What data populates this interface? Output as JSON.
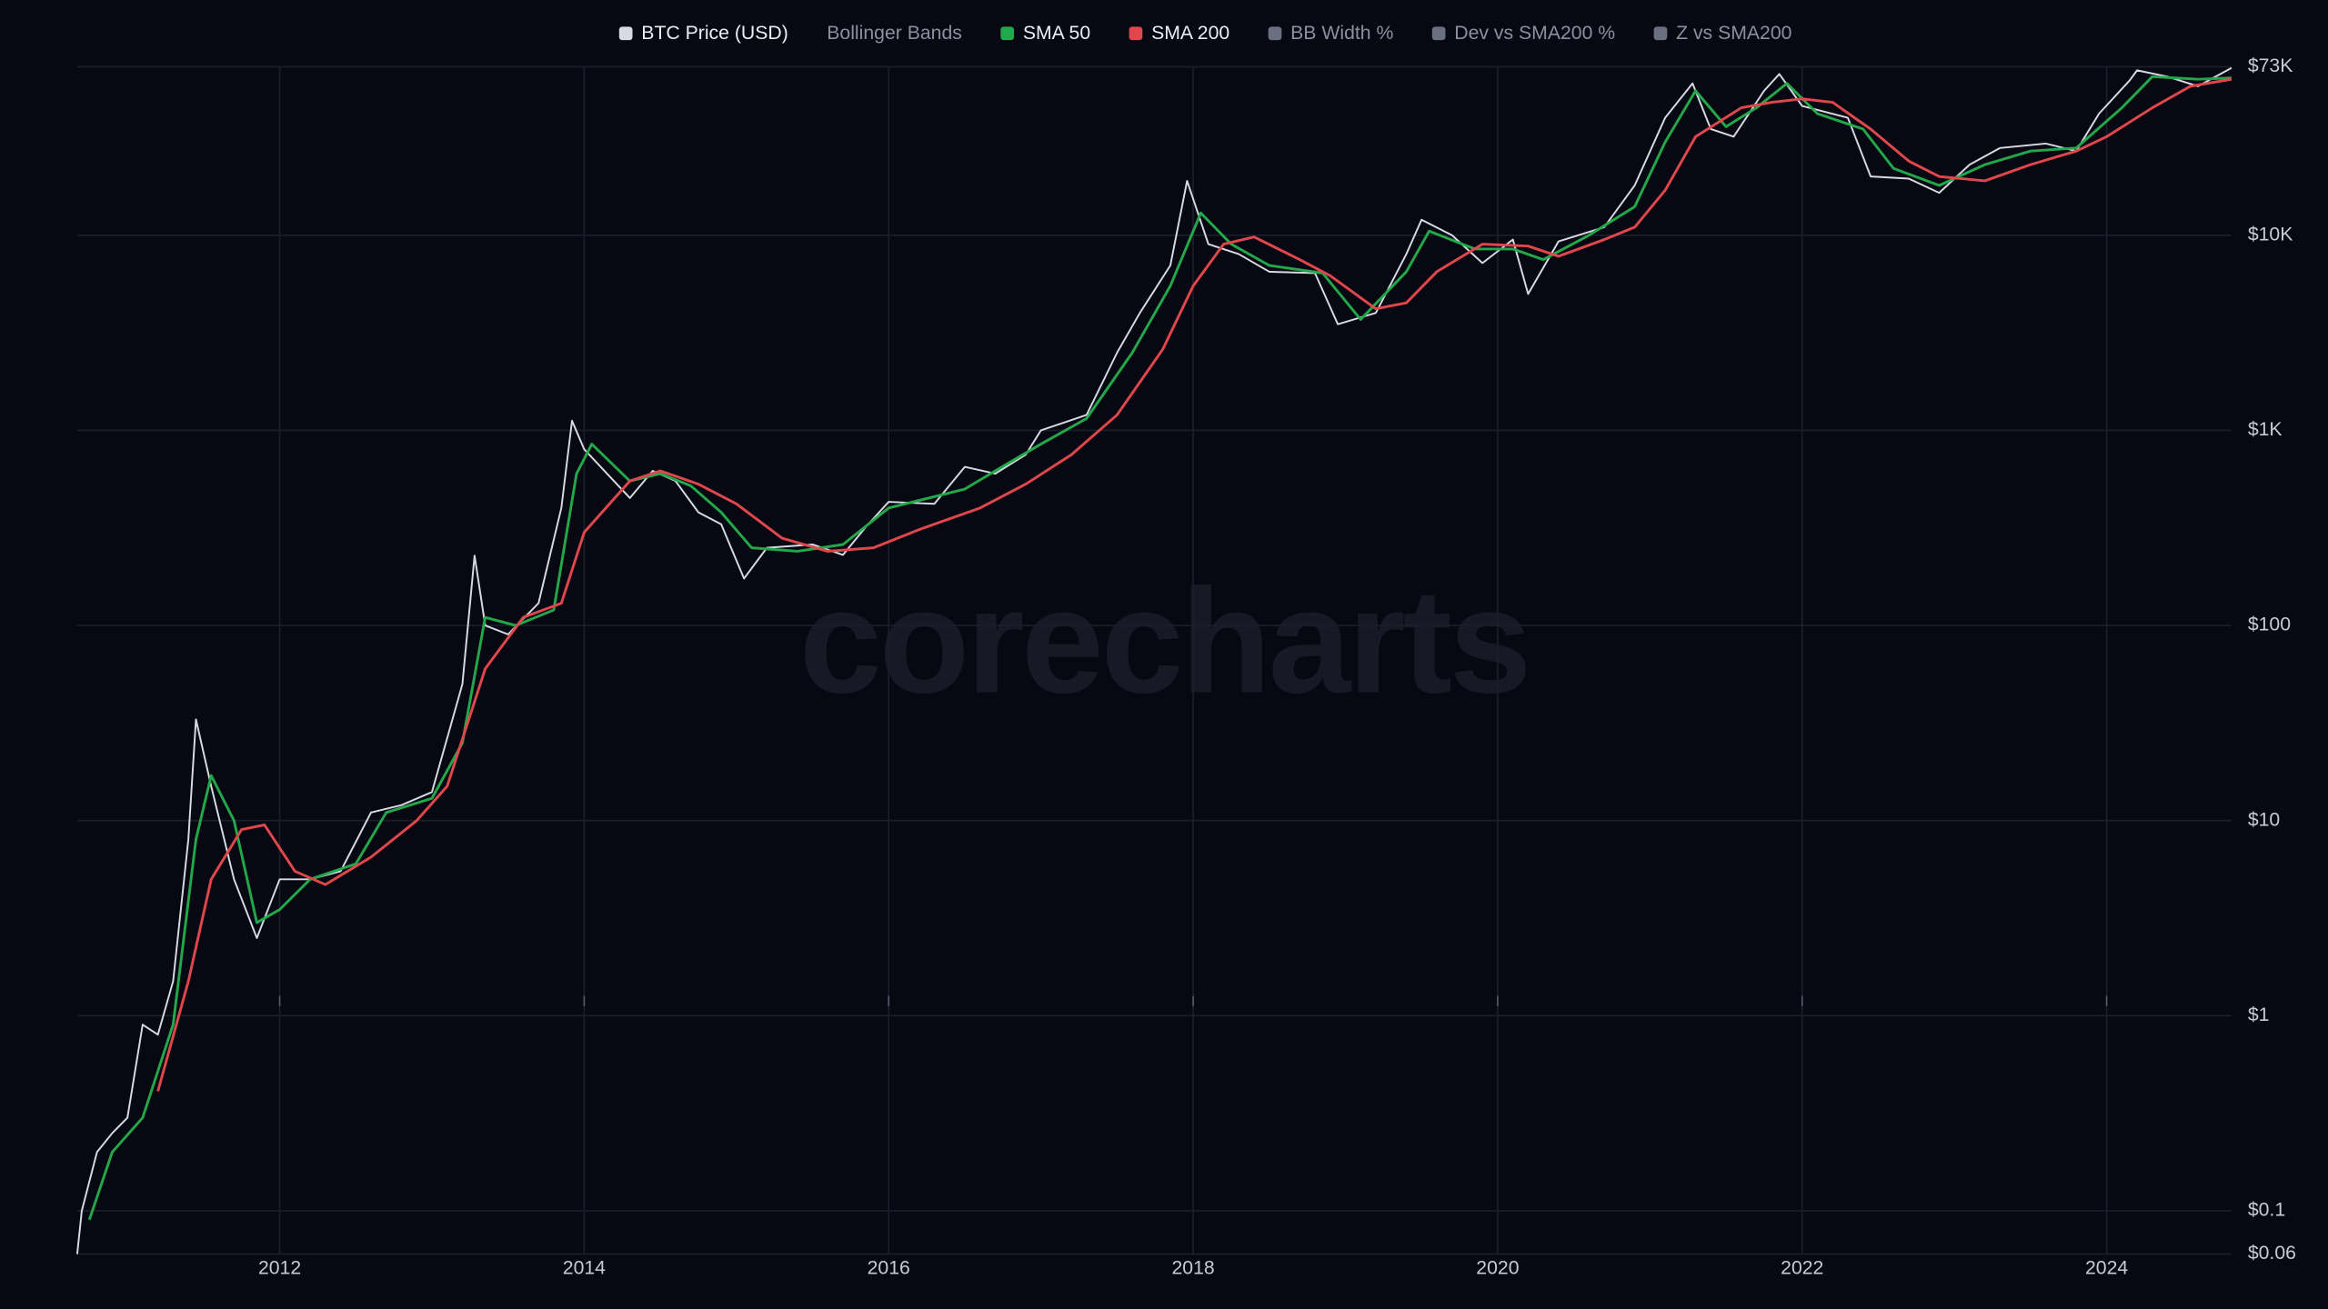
{
  "chart_data": {
    "type": "line",
    "log_y": true,
    "grid": true,
    "legend_position": "top",
    "watermark": "corecharts",
    "xlim": [
      2010.67,
      2024.82
    ],
    "xticks": [
      2012,
      2014,
      2016,
      2018,
      2020,
      2022,
      2024
    ],
    "ylim": [
      0.06,
      73000
    ],
    "yticks": [
      {
        "value": 0.06,
        "label": "$0.06"
      },
      {
        "value": 0.1,
        "label": "$0.1"
      },
      {
        "value": 1,
        "label": "$1"
      },
      {
        "value": 10,
        "label": "$10"
      },
      {
        "value": 100,
        "label": "$100"
      },
      {
        "value": 1000,
        "label": "$1K"
      },
      {
        "value": 10000,
        "label": "$10K"
      },
      {
        "value": 73000,
        "label": "$73K"
      }
    ],
    "series": [
      {
        "name": "BTC Price (USD)",
        "color": "#d9d9e3",
        "visible": true,
        "x": [
          2010.67,
          2010.7,
          2010.8,
          2010.9,
          2011.0,
          2011.1,
          2011.2,
          2011.3,
          2011.4,
          2011.45,
          2011.55,
          2011.7,
          2011.85,
          2012.0,
          2012.2,
          2012.4,
          2012.6,
          2012.8,
          2013.0,
          2013.2,
          2013.28,
          2013.35,
          2013.5,
          2013.7,
          2013.85,
          2013.92,
          2014.0,
          2014.15,
          2014.3,
          2014.45,
          2014.6,
          2014.75,
          2014.9,
          2015.05,
          2015.2,
          2015.5,
          2015.7,
          2015.85,
          2016.0,
          2016.3,
          2016.5,
          2016.7,
          2016.9,
          2017.0,
          2017.3,
          2017.5,
          2017.65,
          2017.85,
          2017.96,
          2018.1,
          2018.3,
          2018.5,
          2018.8,
          2018.95,
          2019.2,
          2019.4,
          2019.5,
          2019.7,
          2019.9,
          2020.1,
          2020.2,
          2020.4,
          2020.7,
          2020.9,
          2021.1,
          2021.28,
          2021.4,
          2021.55,
          2021.75,
          2021.85,
          2022.0,
          2022.3,
          2022.45,
          2022.7,
          2022.9,
          2023.1,
          2023.3,
          2023.6,
          2023.8,
          2023.95,
          2024.15,
          2024.2,
          2024.4,
          2024.6,
          2024.82
        ],
        "values": [
          0.06,
          0.1,
          0.2,
          0.25,
          0.3,
          0.9,
          0.8,
          1.5,
          8,
          33,
          15,
          5,
          2.5,
          5,
          5,
          5.5,
          11,
          12,
          14,
          50,
          228,
          100,
          90,
          130,
          400,
          1120,
          800,
          600,
          450,
          620,
          550,
          380,
          330,
          174,
          250,
          260,
          230,
          320,
          430,
          420,
          650,
          600,
          750,
          1000,
          1200,
          2500,
          4000,
          7000,
          19000,
          9000,
          8000,
          6500,
          6400,
          3500,
          4000,
          8000,
          12000,
          10000,
          7200,
          9500,
          5000,
          9300,
          11000,
          18000,
          40000,
          60000,
          35000,
          32000,
          55000,
          67000,
          46000,
          40000,
          20000,
          19500,
          16500,
          23000,
          28000,
          29500,
          27000,
          42000,
          62000,
          70000,
          65000,
          58000,
          72000
        ]
      },
      {
        "name": "Bollinger Bands",
        "visible": false
      },
      {
        "name": "SMA 50",
        "color": "#22a84a",
        "visible": true,
        "x": [
          2010.75,
          2010.9,
          2011.1,
          2011.3,
          2011.45,
          2011.55,
          2011.7,
          2011.85,
          2012.0,
          2012.2,
          2012.5,
          2012.7,
          2013.0,
          2013.2,
          2013.35,
          2013.55,
          2013.8,
          2013.95,
          2014.05,
          2014.3,
          2014.5,
          2014.7,
          2014.9,
          2015.1,
          2015.4,
          2015.7,
          2016.0,
          2016.5,
          2016.7,
          2017.0,
          2017.3,
          2017.6,
          2017.85,
          2018.05,
          2018.25,
          2018.5,
          2018.85,
          2019.1,
          2019.4,
          2019.55,
          2019.85,
          2020.1,
          2020.3,
          2020.6,
          2020.9,
          2021.1,
          2021.3,
          2021.5,
          2021.7,
          2021.9,
          2022.1,
          2022.4,
          2022.6,
          2022.9,
          2023.2,
          2023.5,
          2023.8,
          2024.1,
          2024.3,
          2024.6,
          2024.82
        ],
        "values": [
          0.09,
          0.2,
          0.3,
          0.9,
          8,
          17,
          10,
          3,
          3.5,
          5,
          6,
          11,
          13,
          25,
          110,
          100,
          120,
          600,
          850,
          550,
          600,
          520,
          380,
          250,
          240,
          260,
          400,
          500,
          620,
          850,
          1150,
          2500,
          5500,
          13000,
          9000,
          7000,
          6400,
          3700,
          6500,
          10500,
          8500,
          8500,
          7500,
          10000,
          14000,
          30000,
          55000,
          36000,
          45000,
          60000,
          42000,
          35000,
          22000,
          18000,
          23000,
          27000,
          28000,
          45000,
          65000,
          63000,
          64000
        ]
      },
      {
        "name": "SMA 200",
        "color": "#e0474c",
        "visible": true,
        "x": [
          2011.2,
          2011.4,
          2011.55,
          2011.75,
          2011.9,
          2012.1,
          2012.3,
          2012.6,
          2012.9,
          2013.1,
          2013.35,
          2013.6,
          2013.85,
          2014.0,
          2014.3,
          2014.5,
          2014.75,
          2015.0,
          2015.3,
          2015.6,
          2015.9,
          2016.2,
          2016.6,
          2016.9,
          2017.2,
          2017.5,
          2017.8,
          2018.0,
          2018.2,
          2018.4,
          2018.7,
          2018.9,
          2019.2,
          2019.4,
          2019.6,
          2019.9,
          2020.2,
          2020.4,
          2020.7,
          2020.9,
          2021.1,
          2021.3,
          2021.6,
          2021.8,
          2022.0,
          2022.2,
          2022.45,
          2022.7,
          2022.9,
          2023.2,
          2023.5,
          2023.8,
          2024.0,
          2024.3,
          2024.55,
          2024.82
        ],
        "values": [
          0.41,
          1.5,
          5,
          9,
          9.5,
          5.5,
          4.7,
          6.5,
          10,
          15,
          60,
          110,
          130,
          300,
          550,
          620,
          530,
          420,
          280,
          240,
          250,
          310,
          400,
          530,
          750,
          1200,
          2600,
          5500,
          9000,
          9800,
          7500,
          6200,
          4200,
          4500,
          6500,
          9000,
          8800,
          7800,
          9500,
          11000,
          17000,
          32000,
          45000,
          48000,
          50000,
          48000,
          35000,
          24000,
          20000,
          19000,
          23000,
          27000,
          32000,
          45000,
          58000,
          63000
        ]
      },
      {
        "name": "BB Width %",
        "color": "#6b7080",
        "visible": false
      },
      {
        "name": "Dev vs SMA200 %",
        "color": "#6b7080",
        "visible": false
      },
      {
        "name": "Z vs SMA200",
        "color": "#6b7080",
        "visible": false
      }
    ]
  }
}
